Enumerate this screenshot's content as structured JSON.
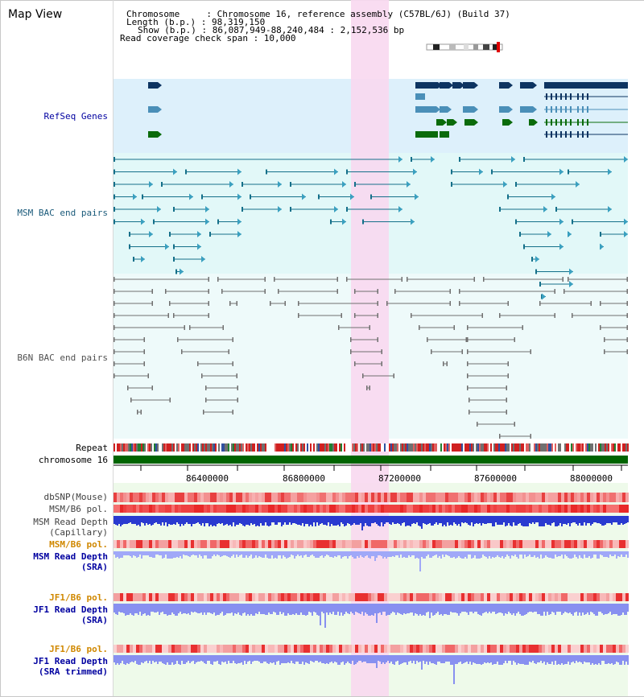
{
  "title": "Map View",
  "info": {
    "line1": "Chromosome     : Chromosome 16, reference assembly (C57BL/6J) (Build 37)",
    "line2": "Length (b.p.) : 98,319,150",
    "line3": "Show (b.p.) : 86,087,949-88,240,484 : 2,152,536 bp",
    "line4": "Read coverage check span : 10,000"
  },
  "tracks": {
    "refseq": "RefSeq Genes",
    "msm_bac": "MSM BAC end pairs",
    "b6n_bac": "B6N BAC end pairs",
    "repeat": "Repeat",
    "chromosome": "chromosome 16",
    "dbsnp": "dbSNP(Mouse)",
    "msm_b6_pol": "MSM/B6 pol.",
    "msm_depth_cap_1": "MSM Read Depth",
    "msm_depth_cap_2": "(Capillary)",
    "msm_b6_pol_sra": "MSM/B6 pol.",
    "msm_depth_sra_1": "MSM Read Depth",
    "msm_depth_sra_2": "(SRA)",
    "jf1_b6_pol": "JF1/B6 pol.",
    "jf1_depth_1": "JF1 Read Depth",
    "jf1_depth_2": "(SRA)",
    "jf1_b6_pol_trim": "JF1/B6 pol.",
    "jf1_trim_1": "JF1 Read Depth",
    "jf1_trim_2": "(SRA trimmed)"
  },
  "axis_ticks": [
    "86400000",
    "86800000",
    "87200000",
    "87600000",
    "88000000"
  ],
  "colors": {
    "highlight": "#f8d8f0",
    "refseq_bg": "#ddf0fb",
    "msm_bg": "#e2f8f8",
    "b6n_bg": "#eefafa",
    "depth_bg": "#eefaea",
    "gene_dark": "#0d3461",
    "gene_mid": "#4a8fb8",
    "gene_green": "#0a6b0a",
    "msm_line": "#15708a",
    "b6n_line": "#707070",
    "chrom_bar": "#006400",
    "snp_red": "#e83838",
    "depth_blue": "#2a3ad0",
    "depth_lavender": "#8890f0",
    "label_orange": "#d08800",
    "label_navy": "#0000a0"
  }
}
